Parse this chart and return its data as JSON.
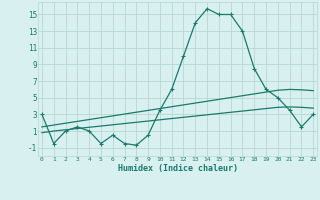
{
  "x": [
    0,
    1,
    2,
    3,
    4,
    5,
    6,
    7,
    8,
    9,
    10,
    11,
    12,
    13,
    14,
    15,
    16,
    17,
    18,
    19,
    20,
    21,
    22,
    23
  ],
  "y_main": [
    3,
    -0.5,
    1,
    1.5,
    1,
    -0.5,
    0.5,
    -0.5,
    -0.7,
    0.5,
    3.5,
    6,
    10,
    14,
    15.7,
    15,
    15,
    13,
    8.5,
    6,
    5,
    3.5,
    1.5,
    3
  ],
  "y_line1": [
    1.5,
    1.72,
    1.94,
    2.16,
    2.38,
    2.6,
    2.82,
    3.04,
    3.26,
    3.48,
    3.7,
    3.92,
    4.14,
    4.36,
    4.58,
    4.8,
    5.02,
    5.24,
    5.46,
    5.68,
    5.9,
    6.0,
    5.95,
    5.85
  ],
  "y_line2": [
    0.8,
    1.0,
    1.15,
    1.3,
    1.45,
    1.6,
    1.75,
    1.9,
    2.05,
    2.2,
    2.35,
    2.5,
    2.65,
    2.8,
    2.95,
    3.1,
    3.25,
    3.4,
    3.55,
    3.7,
    3.85,
    3.9,
    3.85,
    3.75
  ],
  "line_color": "#1a7a6e",
  "bg_color": "#d8f0f0",
  "grid_color": "#b8d8d0",
  "xlabel": "Humidex (Indice chaleur)",
  "yticks": [
    -1,
    1,
    3,
    5,
    7,
    9,
    11,
    13,
    15
  ],
  "xticks": [
    0,
    1,
    2,
    3,
    4,
    5,
    6,
    7,
    8,
    9,
    10,
    11,
    12,
    13,
    14,
    15,
    16,
    17,
    18,
    19,
    20,
    21,
    22,
    23
  ],
  "xlim": [
    -0.3,
    23.3
  ],
  "ylim": [
    -2.0,
    16.5
  ],
  "font_color": "#1a7a6e"
}
